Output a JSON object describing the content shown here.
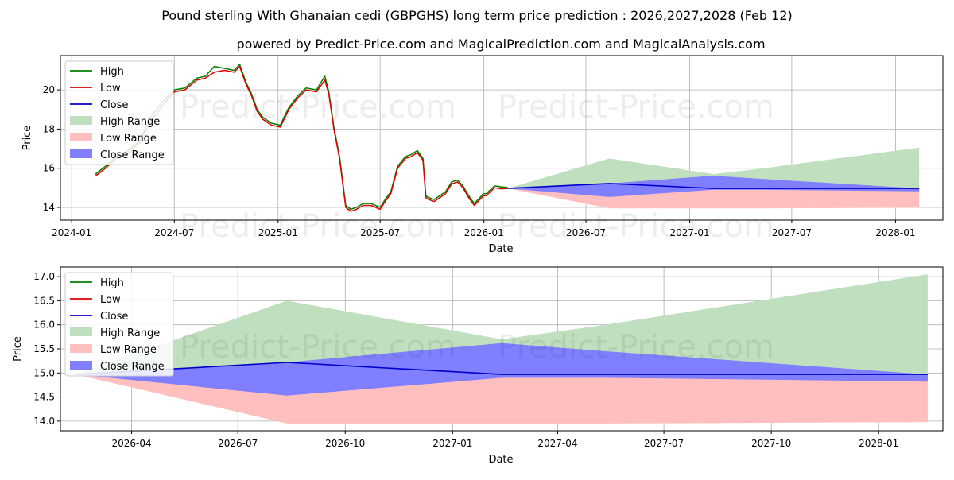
{
  "title": "Pound sterling With Ghanaian cedi (GBPGHS) long term price prediction : 2026,2027,2028 (Feb 12)",
  "subtitle": "powered by Predict-Price.com and MagicalPrediction.com and MagicalAnalysis.com",
  "watermark": "Predict-Price.com",
  "colors": {
    "high": "#008000",
    "low": "#e00000",
    "close": "#0000cc",
    "high_range": "#bfdfbf",
    "low_range": "#ffbfbf",
    "close_range": "#7f7fff",
    "grid": "#b0b0b0"
  },
  "chart_data": [
    {
      "type": "line",
      "panel": "top",
      "xlabel": "Date",
      "ylabel": "Price",
      "xlim": [
        "2023-12-12",
        "2028-03-25"
      ],
      "ylim": [
        13.35,
        21.75
      ],
      "xticks": [
        "2024-01",
        "2024-07",
        "2025-01",
        "2025-07",
        "2026-01",
        "2026-07",
        "2027-01",
        "2027-07",
        "2028-01"
      ],
      "yticks": [
        14,
        16,
        18,
        20
      ],
      "legend": [
        "High",
        "Low",
        "Close",
        "High Range",
        "Low Range",
        "Close Range"
      ],
      "legend_position": "upper-left",
      "history": {
        "dates": [
          "2024-02-12",
          "2024-03-01",
          "2024-03-20",
          "2024-04-10",
          "2024-05-01",
          "2024-05-20",
          "2024-06-10",
          "2024-07-01",
          "2024-07-20",
          "2024-08-10",
          "2024-08-25",
          "2024-09-10",
          "2024-09-28",
          "2024-10-15",
          "2024-10-25",
          "2024-11-05",
          "2024-11-15",
          "2024-11-25",
          "2024-12-05",
          "2024-12-20",
          "2025-01-05",
          "2025-01-20",
          "2025-02-05",
          "2025-02-20",
          "2025-03-10",
          "2025-03-25",
          "2025-04-01",
          "2025-04-10",
          "2025-04-20",
          "2025-05-01",
          "2025-05-10",
          "2025-05-20",
          "2025-06-01",
          "2025-06-15",
          "2025-07-01",
          "2025-07-10",
          "2025-07-20",
          "2025-08-01",
          "2025-08-15",
          "2025-08-25",
          "2025-09-05",
          "2025-09-15",
          "2025-09-20",
          "2025-09-25",
          "2025-10-05",
          "2025-10-15",
          "2025-10-25",
          "2025-11-05",
          "2025-11-15",
          "2025-11-25",
          "2025-12-05",
          "2025-12-15",
          "2025-12-25",
          "2025-12-31",
          "2026-01-05",
          "2026-01-20",
          "2026-02-01",
          "2026-02-12"
        ],
        "low": [
          15.6,
          16.0,
          16.5,
          16.8,
          17.3,
          18.4,
          19.2,
          19.9,
          20.0,
          20.5,
          20.6,
          20.9,
          21.0,
          20.9,
          21.2,
          20.3,
          19.7,
          18.9,
          18.5,
          18.2,
          18.1,
          19.0,
          19.6,
          20.0,
          19.9,
          20.5,
          19.8,
          18.0,
          16.5,
          14.0,
          13.8,
          13.9,
          14.1,
          14.1,
          13.9,
          14.3,
          14.7,
          16.0,
          16.5,
          16.6,
          16.8,
          16.4,
          14.5,
          14.4,
          14.3,
          14.5,
          14.7,
          15.2,
          15.3,
          15.0,
          14.5,
          14.1,
          14.4,
          14.6,
          14.6,
          15.0,
          14.95,
          14.97
        ],
        "high": [
          15.7,
          16.1,
          16.6,
          16.9,
          17.4,
          18.6,
          19.4,
          20.0,
          20.1,
          20.6,
          20.7,
          21.2,
          21.1,
          21.0,
          21.3,
          20.4,
          19.8,
          19.0,
          18.6,
          18.3,
          18.2,
          19.1,
          19.7,
          20.1,
          20.0,
          20.7,
          19.9,
          18.1,
          16.6,
          14.1,
          13.9,
          14.0,
          14.2,
          14.2,
          14.0,
          14.4,
          14.8,
          16.1,
          16.6,
          16.7,
          16.9,
          16.5,
          14.6,
          14.5,
          14.4,
          14.6,
          14.8,
          15.3,
          15.4,
          15.1,
          14.6,
          14.2,
          14.5,
          14.7,
          14.7,
          15.1,
          15.05,
          15.02
        ]
      },
      "forecast": {
        "dates": [
          "2026-02-12",
          "2026-08-12",
          "2027-02-12",
          "2027-05-12",
          "2028-02-12"
        ],
        "close": [
          14.97,
          15.22,
          14.97,
          14.97,
          14.97
        ],
        "high_range_upper": [
          14.97,
          16.5,
          15.7,
          16.0,
          17.05
        ],
        "low_range_lower": [
          14.97,
          13.95,
          13.95,
          13.95,
          13.98
        ],
        "close_range_upper": [
          14.97,
          15.22,
          15.62,
          15.45,
          14.97
        ],
        "close_range_lower": [
          14.97,
          14.53,
          14.9,
          14.9,
          14.82
        ]
      }
    },
    {
      "type": "line",
      "panel": "bottom",
      "xlabel": "Date",
      "ylabel": "Price",
      "xlim": [
        "2026-01-30",
        "2028-02-25"
      ],
      "ylim": [
        13.8,
        17.2
      ],
      "xticks": [
        "2026-04",
        "2026-07",
        "2026-10",
        "2027-01",
        "2027-04",
        "2027-07",
        "2027-10",
        "2028-01"
      ],
      "yticks": [
        14.0,
        14.5,
        15.0,
        15.5,
        16.0,
        16.5,
        17.0
      ],
      "legend": [
        "High",
        "Low",
        "Close",
        "High Range",
        "Low Range",
        "Close Range"
      ],
      "legend_position": "upper-left",
      "forecast": {
        "dates": [
          "2026-02-12",
          "2026-08-12",
          "2027-02-12",
          "2027-05-12",
          "2028-02-12"
        ],
        "close": [
          14.97,
          15.22,
          14.97,
          14.97,
          14.97
        ],
        "high_range_upper": [
          14.97,
          16.5,
          15.7,
          16.0,
          17.05
        ],
        "low_range_lower": [
          14.97,
          13.95,
          13.95,
          13.95,
          13.98
        ],
        "close_range_upper": [
          14.97,
          15.22,
          15.62,
          15.45,
          14.97
        ],
        "close_range_lower": [
          14.97,
          14.53,
          14.9,
          14.9,
          14.82
        ]
      }
    }
  ]
}
